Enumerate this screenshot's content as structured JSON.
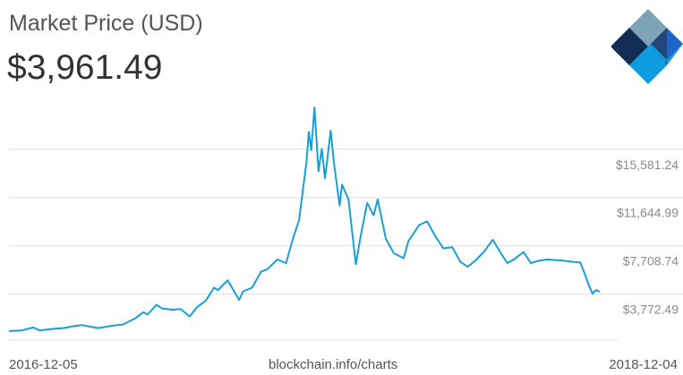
{
  "header": {
    "title": "Market Price (USD)",
    "price": "$3,961.49"
  },
  "logo": {
    "icon": "blockchain-diamond-logo",
    "colors": [
      "#7da3b5",
      "#132d54",
      "#223f6e",
      "#1d66c9",
      "#0f9be0"
    ]
  },
  "footer": {
    "start_date": "2016-12-05",
    "source": "blockchain.info/charts",
    "end_date": "2018-12-04"
  },
  "colors": {
    "line": "#1a9ed4",
    "grid": "#e0e0e0",
    "tick_text": "#8a8a8a"
  },
  "chart_data": {
    "type": "line",
    "title": "Market Price (USD)",
    "xlabel": "",
    "ylabel": "",
    "x_range": [
      "2016-12-05",
      "2018-12-04"
    ],
    "ylim": [
      0,
      19500
    ],
    "yticks": [
      3772.49,
      7708.74,
      11644.99,
      15581.24
    ],
    "ytick_labels": [
      "$3,772.49",
      "$7,708.74",
      "$11,644.99",
      "$15,581.24"
    ],
    "grid": true,
    "legend": "none",
    "series": [
      {
        "x": [
          "2016-12-05",
          "2016-12-20",
          "2017-01-04",
          "2017-01-12",
          "2017-01-25",
          "2017-02-10",
          "2017-02-25",
          "2017-03-05",
          "2017-03-25",
          "2017-04-10",
          "2017-04-25",
          "2017-05-10",
          "2017-05-20",
          "2017-05-25",
          "2017-06-05",
          "2017-06-12",
          "2017-06-25",
          "2017-07-05",
          "2017-07-16",
          "2017-07-25",
          "2017-08-05",
          "2017-08-15",
          "2017-08-20",
          "2017-09-01",
          "2017-09-15",
          "2017-09-20",
          "2017-10-01",
          "2017-10-12",
          "2017-10-20",
          "2017-11-01",
          "2017-11-12",
          "2017-11-20",
          "2017-11-28",
          "2017-12-07",
          "2017-12-10",
          "2017-12-13",
          "2017-12-17",
          "2017-12-22",
          "2017-12-26",
          "2017-12-30",
          "2018-01-06",
          "2018-01-10",
          "2018-01-17",
          "2018-01-20",
          "2018-01-28",
          "2018-02-06",
          "2018-02-12",
          "2018-02-20",
          "2018-02-28",
          "2018-03-05",
          "2018-03-15",
          "2018-03-25",
          "2018-04-06",
          "2018-04-12",
          "2018-04-20",
          "2018-04-25",
          "2018-05-05",
          "2018-05-15",
          "2018-05-25",
          "2018-06-05",
          "2018-06-15",
          "2018-06-24",
          "2018-07-05",
          "2018-07-15",
          "2018-07-25",
          "2018-08-05",
          "2018-08-12",
          "2018-08-20",
          "2018-09-01",
          "2018-09-10",
          "2018-09-20",
          "2018-10-01",
          "2018-10-10",
          "2018-10-20",
          "2018-11-01",
          "2018-11-10",
          "2018-11-15",
          "2018-11-20",
          "2018-11-25",
          "2018-11-29",
          "2018-12-04"
        ],
        "values": [
          760,
          800,
          1050,
          800,
          920,
          1000,
          1180,
          1250,
          1000,
          1180,
          1300,
          1800,
          2300,
          2100,
          2900,
          2600,
          2500,
          2550,
          1950,
          2700,
          3250,
          4300,
          4100,
          4900,
          3300,
          4000,
          4300,
          5600,
          5800,
          6600,
          6300,
          8200,
          9800,
          14500,
          17000,
          15500,
          19000,
          13800,
          15600,
          13200,
          17100,
          14500,
          11000,
          12700,
          11500,
          6200,
          8500,
          11200,
          10200,
          11500,
          8300,
          7100,
          6700,
          8100,
          8900,
          9400,
          9700,
          8500,
          7500,
          7600,
          6400,
          6000,
          6600,
          7300,
          8200,
          7000,
          6300,
          6600,
          7200,
          6300,
          6500,
          6600,
          6550,
          6500,
          6400,
          6350,
          5500,
          4600,
          3800,
          4100,
          3961
        ]
      }
    ]
  }
}
